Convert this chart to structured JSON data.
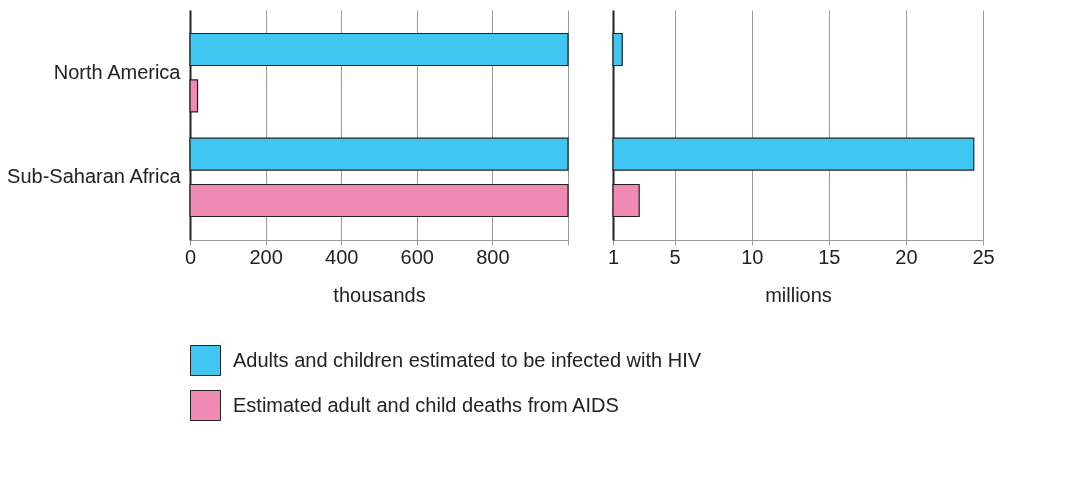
{
  "chart_data": [
    {
      "type": "bar",
      "orientation": "horizontal",
      "xlabel": "thousands",
      "categories": [
        "North America",
        "Sub-Saharan Africa"
      ],
      "xlim": [
        0,
        1000
      ],
      "xticks": [
        0,
        200,
        400,
        600,
        800,
        {
          "value": 1000,
          "label": null
        }
      ],
      "grid": "x",
      "legend": "bottom",
      "series": [
        {
          "name": "Adults and children estimated to be infected with HIV",
          "color": "#41c6f2",
          "values": [
            1000,
            1000
          ]
        },
        {
          "name": "Estimated adult and child deaths from AIDS",
          "color": "#f089b4",
          "values": [
            20,
            1000
          ]
        }
      ]
    },
    {
      "type": "bar",
      "orientation": "horizontal",
      "xlabel": "millions",
      "tick_labels": "x",
      "xlim": [
        1,
        25
      ],
      "xticks": [
        1,
        5,
        10,
        15,
        20,
        25
      ],
      "grid": "x",
      "series": [
        {
          "color": "#41c6f2",
          "values": [
            1.6,
            24.4
          ]
        },
        {
          "color": "#f089b4",
          "values": [
            null,
            2.7
          ]
        }
      ]
    }
  ]
}
